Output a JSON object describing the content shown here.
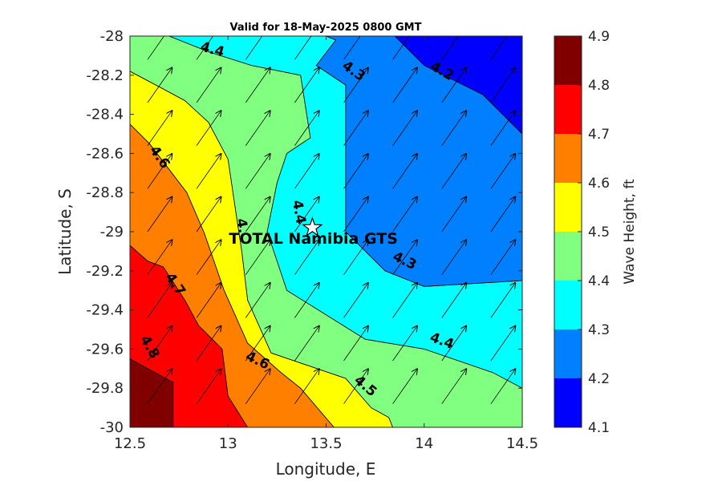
{
  "chart_data": {
    "type": "contour",
    "title": "Valid for 18-May-2025 0800 GMT",
    "xlabel": "Longitude, E",
    "ylabel": "Latitude, S",
    "xlim": [
      12.5,
      14.5
    ],
    "ylim": [
      -30,
      -28
    ],
    "x_ticks": [
      "12.5",
      "13",
      "13.5",
      "14",
      "14.5"
    ],
    "y_ticks": [
      "-28",
      "-28.2",
      "-28.4",
      "-28.6",
      "-28.8",
      "-29",
      "-29.2",
      "-29.4",
      "-29.6",
      "-29.8",
      "-30"
    ],
    "colorbar": {
      "label": "Wave Height, ft",
      "levels": [
        "4.1",
        "4.2",
        "4.3",
        "4.4",
        "4.5",
        "4.6",
        "4.7",
        "4.8",
        "4.9"
      ],
      "colors": [
        "#0000ff",
        "#0080ff",
        "#00ffff",
        "#80ff80",
        "#ffff00",
        "#ff8000",
        "#ff0000",
        "#800000"
      ]
    },
    "bands": [
      {
        "range": [
          4.8,
          4.9
        ],
        "color": "#800000",
        "polygon": [
          [
            12.5,
            -30
          ],
          [
            12.5,
            -29.65
          ],
          [
            12.72,
            -29.77
          ],
          [
            12.72,
            -30
          ]
        ]
      },
      {
        "range": [
          4.7,
          4.8
        ],
        "color": "#ff0000",
        "polygon": [
          [
            12.5,
            -29.07
          ],
          [
            12.5,
            -29.65
          ],
          [
            12.72,
            -29.77
          ],
          [
            12.72,
            -30
          ],
          [
            13.1,
            -30
          ],
          [
            13.0,
            -29.84
          ],
          [
            12.97,
            -29.6
          ],
          [
            12.85,
            -29.48
          ],
          [
            12.78,
            -29.35
          ],
          [
            12.67,
            -29.18
          ],
          [
            12.59,
            -29.15
          ]
        ]
      },
      {
        "range": [
          4.6,
          4.7
        ],
        "color": "#ff8000",
        "polygon": [
          [
            12.5,
            -28.45
          ],
          [
            12.5,
            -29.07
          ],
          [
            12.59,
            -29.15
          ],
          [
            12.67,
            -29.18
          ],
          [
            12.78,
            -29.35
          ],
          [
            12.85,
            -29.48
          ],
          [
            12.97,
            -29.6
          ],
          [
            13.0,
            -29.84
          ],
          [
            13.1,
            -30
          ],
          [
            13.54,
            -30
          ],
          [
            13.37,
            -29.8
          ],
          [
            13.27,
            -29.72
          ],
          [
            13.1,
            -29.57
          ],
          [
            12.98,
            -29.3
          ],
          [
            12.88,
            -29.01
          ],
          [
            12.79,
            -28.8
          ],
          [
            12.6,
            -28.55
          ]
        ]
      },
      {
        "range": [
          4.5,
          4.6
        ],
        "color": "#ffff00",
        "polygon": [
          [
            12.5,
            -28.18
          ],
          [
            12.5,
            -28.45
          ],
          [
            12.6,
            -28.55
          ],
          [
            12.79,
            -28.8
          ],
          [
            12.88,
            -29.01
          ],
          [
            12.98,
            -29.3
          ],
          [
            13.1,
            -29.57
          ],
          [
            13.27,
            -29.72
          ],
          [
            13.37,
            -29.8
          ],
          [
            13.54,
            -30
          ],
          [
            13.84,
            -30
          ],
          [
            13.82,
            -29.95
          ],
          [
            13.73,
            -29.9
          ],
          [
            13.6,
            -29.75
          ],
          [
            13.22,
            -29.62
          ],
          [
            13.1,
            -29.35
          ],
          [
            13.07,
            -29.1
          ],
          [
            13.04,
            -28.9
          ],
          [
            13.0,
            -28.63
          ],
          [
            12.9,
            -28.44
          ],
          [
            12.78,
            -28.33
          ],
          [
            12.65,
            -28.26
          ]
        ]
      },
      {
        "range": [
          4.4,
          4.5
        ],
        "color": "#80ff80",
        "polygon": [
          [
            12.5,
            -28.0
          ],
          [
            12.5,
            -28.18
          ],
          [
            12.65,
            -28.26
          ],
          [
            12.78,
            -28.33
          ],
          [
            12.9,
            -28.44
          ],
          [
            13.0,
            -28.63
          ],
          [
            13.04,
            -28.9
          ],
          [
            13.07,
            -29.1
          ],
          [
            13.1,
            -29.35
          ],
          [
            13.22,
            -29.62
          ],
          [
            13.6,
            -29.75
          ],
          [
            13.73,
            -29.9
          ],
          [
            13.82,
            -29.95
          ],
          [
            13.84,
            -30
          ],
          [
            14.5,
            -30
          ],
          [
            14.5,
            -29.8
          ],
          [
            14.35,
            -29.72
          ],
          [
            14.0,
            -29.6
          ],
          [
            13.7,
            -29.55
          ],
          [
            13.3,
            -29.3
          ],
          [
            13.2,
            -29.0
          ],
          [
            13.25,
            -28.75
          ],
          [
            13.3,
            -28.6
          ],
          [
            13.42,
            -28.52
          ],
          [
            13.37,
            -28.2
          ],
          [
            13.12,
            -28.15
          ],
          [
            12.9,
            -28.08
          ],
          [
            12.7,
            -28.0
          ]
        ]
      },
      {
        "range": [
          4.3,
          4.4
        ],
        "color": "#00ffff",
        "polygon": [
          [
            12.7,
            -28.0
          ],
          [
            12.9,
            -28.08
          ],
          [
            13.12,
            -28.15
          ],
          [
            13.37,
            -28.2
          ],
          [
            13.42,
            -28.52
          ],
          [
            13.3,
            -28.6
          ],
          [
            13.25,
            -28.75
          ],
          [
            13.2,
            -29.0
          ],
          [
            13.3,
            -29.3
          ],
          [
            13.7,
            -29.55
          ],
          [
            14.0,
            -29.6
          ],
          [
            14.35,
            -29.72
          ],
          [
            14.5,
            -29.8
          ],
          [
            14.5,
            -29.25
          ],
          [
            14.0,
            -29.28
          ],
          [
            13.8,
            -29.2
          ],
          [
            13.6,
            -29.0
          ],
          [
            13.6,
            -28.25
          ],
          [
            13.45,
            -28.15
          ],
          [
            13.55,
            -28.02
          ],
          [
            13.5,
            -28.0
          ]
        ]
      },
      {
        "range": [
          4.2,
          4.3
        ],
        "color": "#0080ff",
        "polygon": [
          [
            13.5,
            -28.0
          ],
          [
            13.55,
            -28.02
          ],
          [
            13.45,
            -28.15
          ],
          [
            13.6,
            -28.25
          ],
          [
            13.6,
            -29.0
          ],
          [
            13.8,
            -29.2
          ],
          [
            14.0,
            -29.28
          ],
          [
            14.5,
            -29.25
          ],
          [
            14.5,
            -28.5
          ],
          [
            14.3,
            -28.3
          ],
          [
            14.0,
            -28.15
          ],
          [
            13.85,
            -28.0
          ]
        ]
      },
      {
        "range": [
          4.1,
          4.2
        ],
        "color": "#0000ff",
        "polygon": [
          [
            13.85,
            -28.0
          ],
          [
            14.0,
            -28.15
          ],
          [
            14.3,
            -28.3
          ],
          [
            14.5,
            -28.5
          ],
          [
            14.5,
            -28.0
          ]
        ]
      }
    ],
    "contour_labels": [
      {
        "text": "4.4",
        "x": 12.92,
        "y": -28.07,
        "angle": 15
      },
      {
        "text": "4.3",
        "x": 13.64,
        "y": -28.18,
        "angle": 35
      },
      {
        "text": "4.2",
        "x": 14.09,
        "y": -28.18,
        "angle": 30
      },
      {
        "text": "4.6",
        "x": 12.65,
        "y": -28.62,
        "angle": 55
      },
      {
        "text": "4.4",
        "x": 13.36,
        "y": -28.9,
        "angle": 80
      },
      {
        "text": "4.",
        "x": 13.07,
        "y": -28.97,
        "angle": 80
      },
      {
        "text": "4.3",
        "x": 13.9,
        "y": -29.15,
        "angle": 25
      },
      {
        "text": "4.7",
        "x": 12.73,
        "y": -29.27,
        "angle": 55
      },
      {
        "text": "4.4",
        "x": 14.09,
        "y": -29.56,
        "angle": 20
      },
      {
        "text": "4.8",
        "x": 12.6,
        "y": -29.59,
        "angle": 60
      },
      {
        "text": "4.6",
        "x": 13.15,
        "y": -29.66,
        "angle": 25
      },
      {
        "text": "4.5",
        "x": 13.7,
        "y": -29.79,
        "angle": 40
      }
    ],
    "site": {
      "name": "TOTAL Namibia GTS",
      "lon": 13.43,
      "lat": -28.98
    },
    "vectors": {
      "x": [
        12.59,
        12.84,
        13.09,
        13.34,
        13.59,
        13.84,
        14.09,
        14.34
      ],
      "y": [
        -28.12,
        -28.34,
        -28.56,
        -28.78,
        -29.0,
        -29.22,
        -29.44,
        -29.66,
        -29.88
      ],
      "direction_deg": 35
    }
  }
}
